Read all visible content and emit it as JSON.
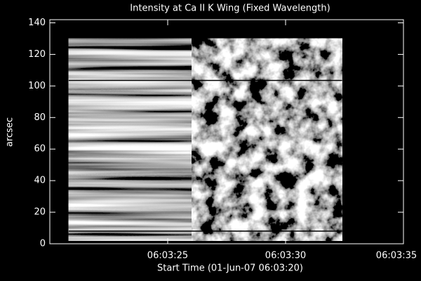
{
  "chart_data": {
    "type": "image",
    "title": "Intensity at Ca II K Wing (Fixed Wavelength)",
    "xlabel": "Start Time (01-Jun-07 06:03:20)",
    "ylabel": "arcsec",
    "xlim": [
      0,
      15
    ],
    "xticks": [
      {
        "value": 5,
        "label": "06:03:25"
      },
      {
        "value": 10,
        "label": "06:03:30"
      },
      {
        "value": 15,
        "label": "06:03:35"
      }
    ],
    "ylim": [
      0,
      142
    ],
    "yticks": [
      0,
      20,
      40,
      60,
      80,
      100,
      120,
      140
    ],
    "image_extent": [
      0.8,
      12.4,
      2,
      130
    ],
    "hlines": [
      103.5,
      8
    ],
    "colormap": "gray",
    "background": "#000000",
    "foreground": "#ffffff"
  }
}
